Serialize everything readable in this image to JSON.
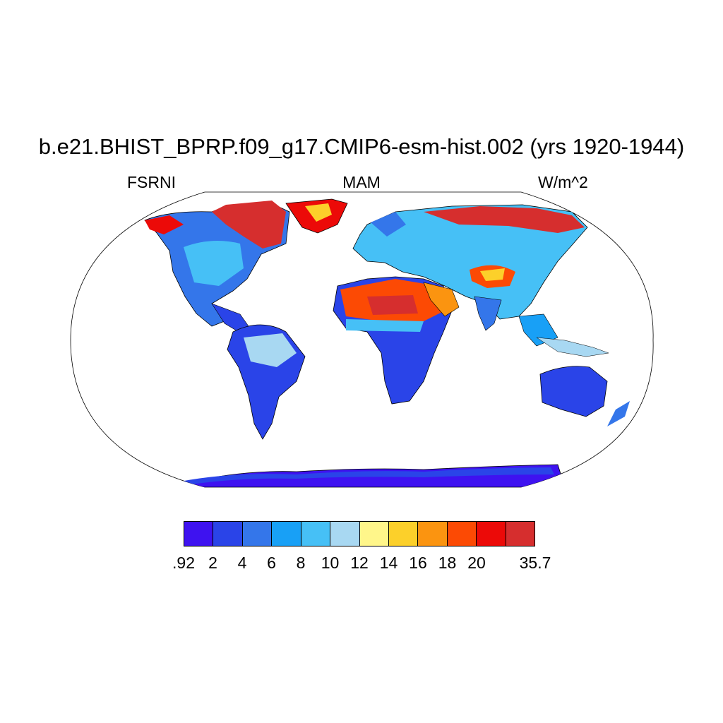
{
  "title": "b.e21.BHIST_BPRP.f09_g17.CMIP6-esm-hist.002 (yrs 1920-1944)",
  "left_label": "FSRNI",
  "center_label": "MAM",
  "right_label": "W/m^2",
  "colorbar": {
    "colors": [
      "#3e12f0",
      "#2a44e8",
      "#3476ea",
      "#18a0f6",
      "#46c0f6",
      "#a8d8f2",
      "#fff68a",
      "#fcd02a",
      "#fb9410",
      "#fc4a04",
      "#ec0a08",
      "#d62e2e"
    ],
    "tick_labels": [
      ".92",
      "2",
      "4",
      "6",
      "8",
      "10",
      "12",
      "14",
      "16",
      "18",
      "20",
      "35.7"
    ]
  }
}
